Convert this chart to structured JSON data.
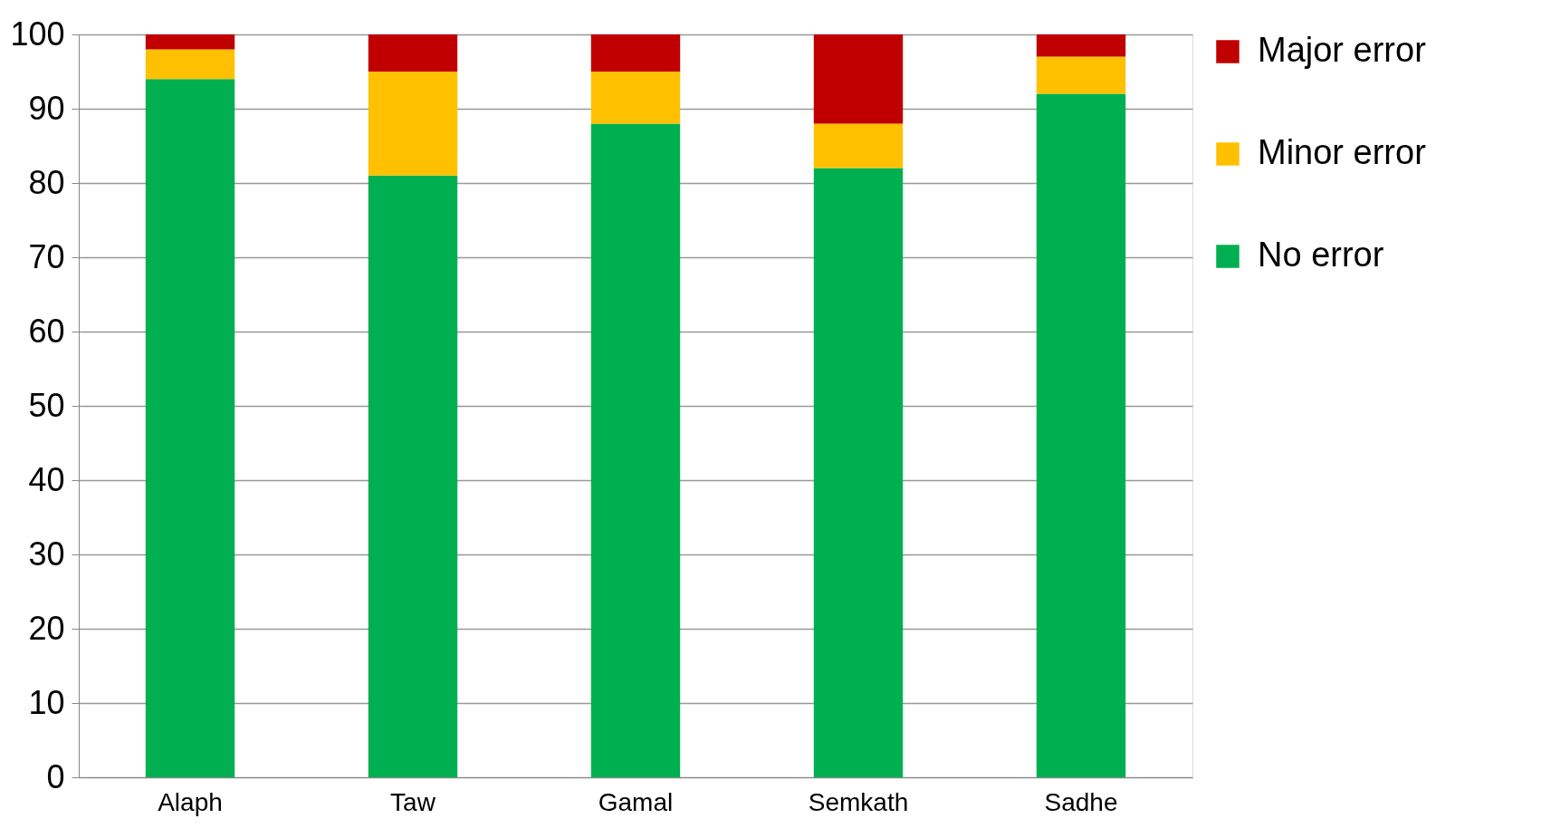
{
  "chart_data": {
    "type": "bar",
    "stacked": true,
    "categories": [
      "Alaph",
      "Taw",
      "Gamal",
      "Semkath",
      "Sadhe"
    ],
    "series": [
      {
        "name": "No error",
        "color": "#00b050",
        "values": [
          94,
          81,
          88,
          82,
          92
        ]
      },
      {
        "name": "Minor error",
        "color": "#ffc000",
        "values": [
          4,
          14,
          7,
          6,
          5
        ]
      },
      {
        "name": "Major error",
        "color": "#c00000",
        "values": [
          2,
          5,
          5,
          12,
          3
        ]
      }
    ],
    "ylim": [
      0,
      100
    ],
    "yticks": [
      0,
      10,
      20,
      30,
      40,
      50,
      60,
      70,
      80,
      90,
      100
    ],
    "grid": "y",
    "legend": "right"
  }
}
